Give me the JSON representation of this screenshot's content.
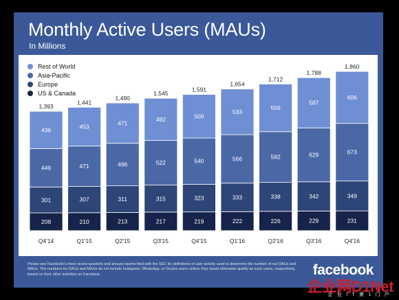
{
  "slide": {
    "title": "Monthly Active Users (MAUs)",
    "subtitle": "In Millions",
    "footnote": "Please see Facebook's most recent quarterly and annual reports filed with the SEC for definitions of user activity used to determine the number of our DAUs and MAUs. The numbers for DAUs and MAUs do not include Instagram, WhatsApp, or Oculus users unless they would otherwise qualify as such users, respectively, based on their other activities on Facebook.",
    "brand": "facebook",
    "watermark": "企业网D1Net",
    "watermark_sub": "企 业 I T 第 1 门 户"
  },
  "chart_data": {
    "type": "bar",
    "stacked": true,
    "categories": [
      "Q4'14",
      "Q1'15",
      "Q2'15",
      "Q3'15",
      "Q4'15",
      "Q1'16",
      "Q2'16",
      "Q3'16",
      "Q4'16"
    ],
    "series": [
      {
        "name": "US & Canada",
        "color": "#16234a",
        "values": [
          208,
          210,
          213,
          217,
          219,
          222,
          226,
          229,
          231
        ]
      },
      {
        "name": "Europe",
        "color": "#2e4577",
        "values": [
          301,
          307,
          311,
          315,
          323,
          333,
          338,
          342,
          349
        ]
      },
      {
        "name": "Asia-Pacific",
        "color": "#4b68a6",
        "values": [
          449,
          471,
          496,
          522,
          540,
          566,
          592,
          629,
          673
        ]
      },
      {
        "name": "Rest of World",
        "color": "#6f8fd4",
        "values": [
          436,
          453,
          471,
          492,
          509,
          533,
          556,
          587,
          606
        ]
      }
    ],
    "totals": [
      1393,
      1441,
      1490,
      1545,
      1591,
      1654,
      1712,
      1788,
      1860
    ],
    "total_labels": [
      "1,393",
      "1,441",
      "1,490",
      "1,545",
      "1,591",
      "1,654",
      "1,712",
      "1,788",
      "1,860"
    ],
    "legend_order": [
      "Rest of World",
      "Asia-Pacific",
      "Europe",
      "US & Canada"
    ],
    "legend_position": "top-left",
    "ylim": [
      0,
      1860
    ],
    "grid": false
  }
}
